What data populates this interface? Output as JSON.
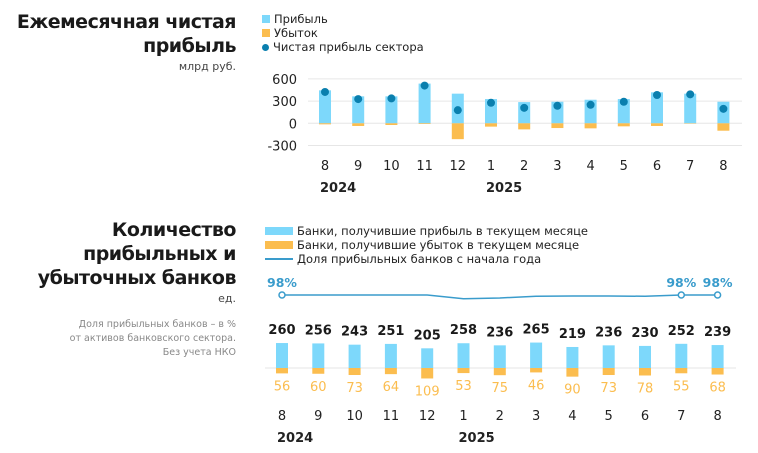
{
  "colors": {
    "profit": "#7dd8fb",
    "loss": "#fbbd4f",
    "net": "#0a7fae",
    "line": "#3a9ccc",
    "grid": "#e6e6e6"
  },
  "chart_data": [
    {
      "type": "bar",
      "title": "Ежемесячная чистая прибыль",
      "unit": "млрд руб.",
      "categories": [
        "8",
        "9",
        "10",
        "11",
        "12",
        "1",
        "2",
        "3",
        "4",
        "5",
        "6",
        "7",
        "8"
      ],
      "years": [
        {
          "label": "2024",
          "at": 0
        },
        {
          "label": "2025",
          "at": 5
        }
      ],
      "ylim": [
        -300,
        600
      ],
      "yticks": [
        600,
        300,
        0,
        -300
      ],
      "grid": true,
      "legend_position": "top",
      "series": [
        {
          "name": "Прибыль",
          "type": "bar",
          "values": [
            445,
            364,
            364,
            536,
            400,
            327,
            286,
            291,
            318,
            327,
            418,
            400,
            291
          ]
        },
        {
          "name": "Убыток",
          "type": "bar",
          "values": [
            -14,
            -36,
            -23,
            -9,
            -214,
            -45,
            -82,
            -64,
            -68,
            -41,
            -36,
            -5,
            -100
          ]
        },
        {
          "name": "Чистая прибыль сектора",
          "type": "scatter",
          "values": [
            423,
            327,
            336,
            509,
            177,
            277,
            209,
            236,
            250,
            291,
            382,
            391,
            195
          ]
        }
      ]
    },
    {
      "type": "bar",
      "title": "Количество прибыльных и убыточных банков",
      "unit": "ед.",
      "note": [
        "Доля прибыльных банков – в %",
        "от активов банковского сектора.",
        "Без учета НКО"
      ],
      "categories": [
        "8",
        "9",
        "10",
        "11",
        "12",
        "1",
        "2",
        "3",
        "4",
        "5",
        "6",
        "7",
        "8"
      ],
      "years": [
        {
          "label": "2024",
          "at": 0
        },
        {
          "label": "2025",
          "at": 5
        }
      ],
      "legend_position": "top",
      "series": [
        {
          "name": "Банки, получившие прибыль в текущем месяце",
          "type": "bar",
          "values": [
            260,
            256,
            243,
            251,
            205,
            258,
            236,
            265,
            219,
            236,
            230,
            252,
            239
          ]
        },
        {
          "name": "Банки, получившие убыток в текущем месяце",
          "type": "bar",
          "values": [
            56,
            60,
            73,
            64,
            109,
            53,
            75,
            46,
            90,
            73,
            78,
            55,
            68
          ]
        },
        {
          "name": "Доля прибыльных банков с начала года",
          "type": "line",
          "unit": "%",
          "values": [
            98,
            98,
            98,
            98,
            98,
            96.5,
            96.8,
            97.5,
            97.6,
            97.6,
            97.5,
            98,
            98
          ],
          "labels": [
            {
              "at": 0,
              "text": "98%"
            },
            {
              "at": 11,
              "text": "98%"
            },
            {
              "at": 12,
              "text": "98%"
            }
          ]
        }
      ]
    }
  ]
}
